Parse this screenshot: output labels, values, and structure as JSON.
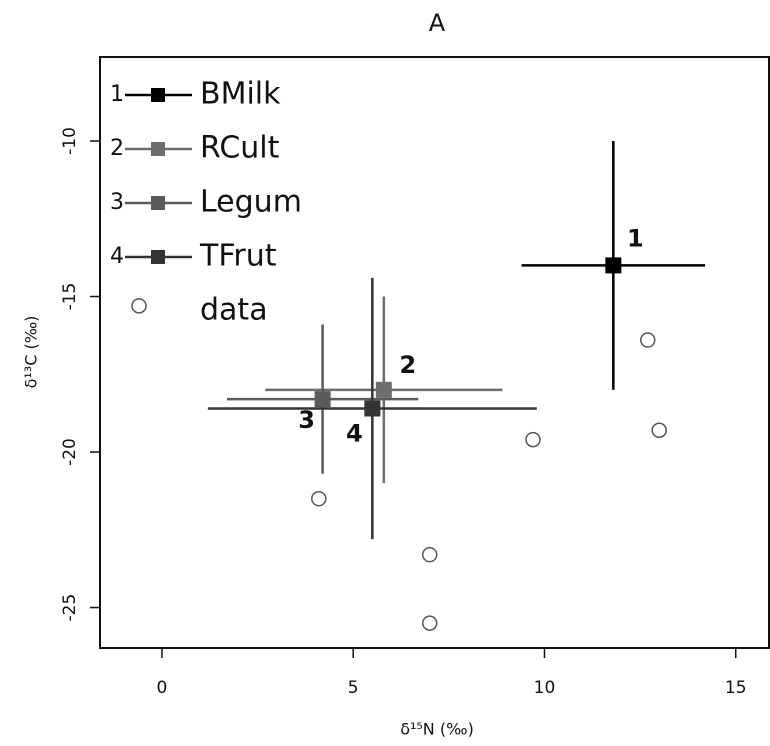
{
  "chart_data": {
    "type": "scatter",
    "title": "A",
    "xlabel": "δ¹⁵N (‰)",
    "ylabel": "δ¹³C (‰)",
    "xlim": [
      -1.62,
      15.87
    ],
    "ylim": [
      -26.3,
      -7.3
    ],
    "xticks": [
      0,
      5,
      10,
      15
    ],
    "yticks": [
      -10,
      -15,
      -20,
      -25
    ],
    "series": [
      {
        "name": "BMilk",
        "label": "1",
        "color": "#000000",
        "x": [
          11.8
        ],
        "y": [
          -14.0
        ],
        "xerr": [
          2.4
        ],
        "yerr": [
          4.0
        ]
      },
      {
        "name": "RCult",
        "label": "2",
        "color": "#6e6e6e",
        "x": [
          5.8
        ],
        "y": [
          -18.0
        ],
        "xerr": [
          3.1
        ],
        "yerr": [
          3.0
        ]
      },
      {
        "name": "Legum",
        "label": "3",
        "color": "#5a5a5a",
        "x": [
          4.2
        ],
        "y": [
          -18.3
        ],
        "xerr": [
          2.5
        ],
        "yerr": [
          2.4
        ]
      },
      {
        "name": "TFrut",
        "label": "4",
        "color": "#333333",
        "x": [
          5.5
        ],
        "y": [
          -18.6
        ],
        "xerr": [
          4.3
        ],
        "yerr": [
          4.2
        ]
      },
      {
        "name": "data",
        "color": "#555555",
        "x": [
          -0.6,
          12.7,
          13.0,
          9.7,
          4.1,
          7.0,
          7.0
        ],
        "y": [
          -15.3,
          -16.4,
          -19.3,
          -19.6,
          -21.5,
          -23.3,
          -25.5
        ]
      }
    ]
  }
}
